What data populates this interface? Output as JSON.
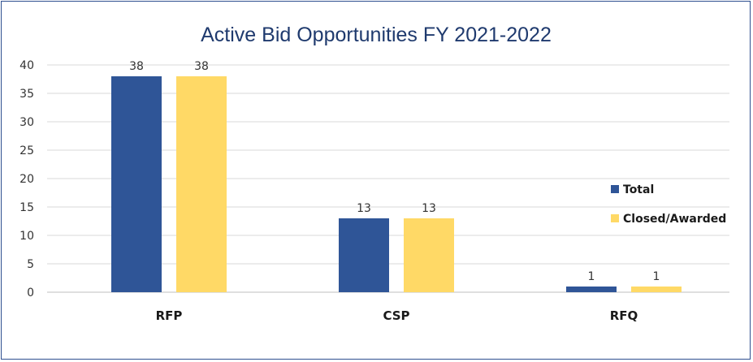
{
  "chart_data": {
    "type": "bar",
    "title": "Active Bid Opportunities FY 2021-2022",
    "xlabel": "",
    "ylabel": "",
    "categories": [
      "RFP",
      "CSP",
      "RFQ"
    ],
    "series": [
      {
        "name": "Total",
        "values": [
          38,
          13,
          1
        ],
        "color": "#2f5597"
      },
      {
        "name": "Closed/Awarded",
        "values": [
          38,
          13,
          1
        ],
        "color": "#ffd966"
      }
    ],
    "ylim": [
      0,
      40
    ],
    "yticks": [
      0,
      5,
      10,
      15,
      20,
      25,
      30,
      35,
      40
    ],
    "grid": true,
    "legend_position": "right"
  },
  "colors": {
    "border": "#2f4f8f",
    "gridline": "#d9d9d9",
    "axis": "#bfbfbf"
  }
}
